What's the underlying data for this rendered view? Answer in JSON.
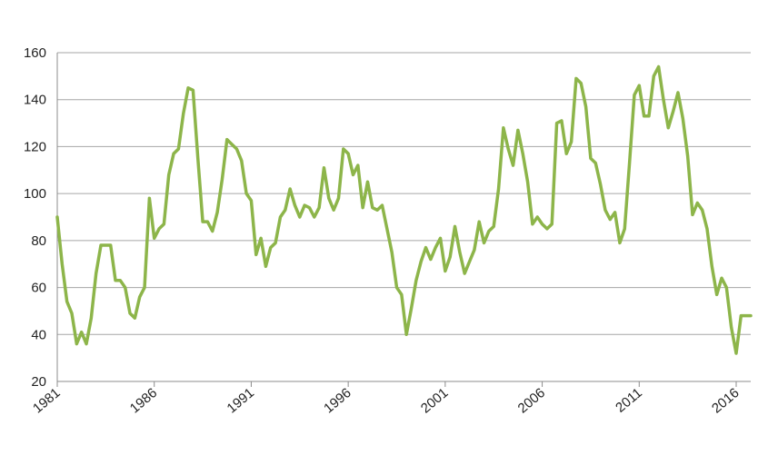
{
  "chart_data": {
    "type": "line",
    "title": "",
    "xlabel": "",
    "ylabel": "",
    "ylim": [
      20,
      160
    ],
    "yticks": [
      20,
      40,
      60,
      80,
      100,
      120,
      140,
      160
    ],
    "xlim": [
      1981,
      2016.75
    ],
    "xticks": [
      1981,
      1986,
      1991,
      1996,
      2001,
      2006,
      2011,
      2016
    ],
    "grid": true,
    "legend": "none",
    "line_color": "#8db54a",
    "series": [
      {
        "points": [
          [
            1981.0,
            90
          ],
          [
            1981.25,
            70
          ],
          [
            1981.5,
            54
          ],
          [
            1981.75,
            49
          ],
          [
            1982.0,
            36
          ],
          [
            1982.25,
            41
          ],
          [
            1982.5,
            36
          ],
          [
            1982.75,
            47
          ],
          [
            1983.0,
            66
          ],
          [
            1983.25,
            78
          ],
          [
            1983.5,
            78
          ],
          [
            1983.75,
            78
          ],
          [
            1984.0,
            63
          ],
          [
            1984.25,
            63
          ],
          [
            1984.5,
            60
          ],
          [
            1984.75,
            49
          ],
          [
            1985.0,
            47
          ],
          [
            1985.25,
            56
          ],
          [
            1985.5,
            60
          ],
          [
            1985.75,
            98
          ],
          [
            1986.0,
            81
          ],
          [
            1986.25,
            85
          ],
          [
            1986.5,
            87
          ],
          [
            1986.75,
            108
          ],
          [
            1987.0,
            117
          ],
          [
            1987.25,
            119
          ],
          [
            1987.5,
            134
          ],
          [
            1987.75,
            145
          ],
          [
            1988.0,
            144
          ],
          [
            1988.25,
            115
          ],
          [
            1988.5,
            88
          ],
          [
            1988.75,
            88
          ],
          [
            1989.0,
            84
          ],
          [
            1989.25,
            92
          ],
          [
            1989.5,
            106
          ],
          [
            1989.75,
            123
          ],
          [
            1990.0,
            121
          ],
          [
            1990.25,
            119
          ],
          [
            1990.5,
            114
          ],
          [
            1990.75,
            100
          ],
          [
            1991.0,
            97
          ],
          [
            1991.25,
            74
          ],
          [
            1991.5,
            81
          ],
          [
            1991.75,
            69
          ],
          [
            1992.0,
            77
          ],
          [
            1992.25,
            79
          ],
          [
            1992.5,
            90
          ],
          [
            1992.75,
            93
          ],
          [
            1993.0,
            102
          ],
          [
            1993.25,
            95
          ],
          [
            1993.5,
            90
          ],
          [
            1993.75,
            95
          ],
          [
            1994.0,
            94
          ],
          [
            1994.25,
            90
          ],
          [
            1994.5,
            94
          ],
          [
            1994.75,
            111
          ],
          [
            1995.0,
            98
          ],
          [
            1995.25,
            93
          ],
          [
            1995.5,
            98
          ],
          [
            1995.75,
            119
          ],
          [
            1996.0,
            117
          ],
          [
            1996.25,
            108
          ],
          [
            1996.5,
            112
          ],
          [
            1996.75,
            94
          ],
          [
            1997.0,
            105
          ],
          [
            1997.25,
            94
          ],
          [
            1997.5,
            93
          ],
          [
            1997.75,
            95
          ],
          [
            1998.0,
            85
          ],
          [
            1998.25,
            75
          ],
          [
            1998.5,
            60
          ],
          [
            1998.75,
            57
          ],
          [
            1999.0,
            40
          ],
          [
            1999.25,
            51
          ],
          [
            1999.5,
            63
          ],
          [
            1999.75,
            71
          ],
          [
            2000.0,
            77
          ],
          [
            2000.25,
            72
          ],
          [
            2000.5,
            77
          ],
          [
            2000.75,
            81
          ],
          [
            2001.0,
            67
          ],
          [
            2001.25,
            73
          ],
          [
            2001.5,
            86
          ],
          [
            2001.75,
            75
          ],
          [
            2002.0,
            66
          ],
          [
            2002.25,
            71
          ],
          [
            2002.5,
            76
          ],
          [
            2002.75,
            88
          ],
          [
            2003.0,
            79
          ],
          [
            2003.25,
            84
          ],
          [
            2003.5,
            86
          ],
          [
            2003.75,
            102
          ],
          [
            2004.0,
            128
          ],
          [
            2004.25,
            119
          ],
          [
            2004.5,
            112
          ],
          [
            2004.75,
            127
          ],
          [
            2005.0,
            117
          ],
          [
            2005.25,
            105
          ],
          [
            2005.5,
            87
          ],
          [
            2005.75,
            90
          ],
          [
            2006.0,
            87
          ],
          [
            2006.25,
            85
          ],
          [
            2006.5,
            87
          ],
          [
            2006.75,
            130
          ],
          [
            2007.0,
            131
          ],
          [
            2007.25,
            117
          ],
          [
            2007.5,
            122
          ],
          [
            2007.75,
            149
          ],
          [
            2008.0,
            147
          ],
          [
            2008.25,
            137
          ],
          [
            2008.5,
            115
          ],
          [
            2008.75,
            113
          ],
          [
            2009.0,
            104
          ],
          [
            2009.25,
            93
          ],
          [
            2009.5,
            89
          ],
          [
            2009.75,
            92
          ],
          [
            2010.0,
            79
          ],
          [
            2010.25,
            85
          ],
          [
            2010.5,
            113
          ],
          [
            2010.75,
            142
          ],
          [
            2011.0,
            146
          ],
          [
            2011.25,
            133
          ],
          [
            2011.5,
            133
          ],
          [
            2011.75,
            150
          ],
          [
            2012.0,
            154
          ],
          [
            2012.25,
            140
          ],
          [
            2012.5,
            128
          ],
          [
            2012.75,
            135
          ],
          [
            2013.0,
            143
          ],
          [
            2013.25,
            132
          ],
          [
            2013.5,
            116
          ],
          [
            2013.75,
            91
          ],
          [
            2014.0,
            96
          ],
          [
            2014.25,
            93
          ],
          [
            2014.5,
            85
          ],
          [
            2014.75,
            69
          ],
          [
            2015.0,
            57
          ],
          [
            2015.25,
            64
          ],
          [
            2015.5,
            60
          ],
          [
            2015.75,
            43
          ],
          [
            2016.0,
            32
          ],
          [
            2016.25,
            48
          ],
          [
            2016.5,
            48
          ],
          [
            2016.75,
            48
          ]
        ]
      }
    ]
  }
}
